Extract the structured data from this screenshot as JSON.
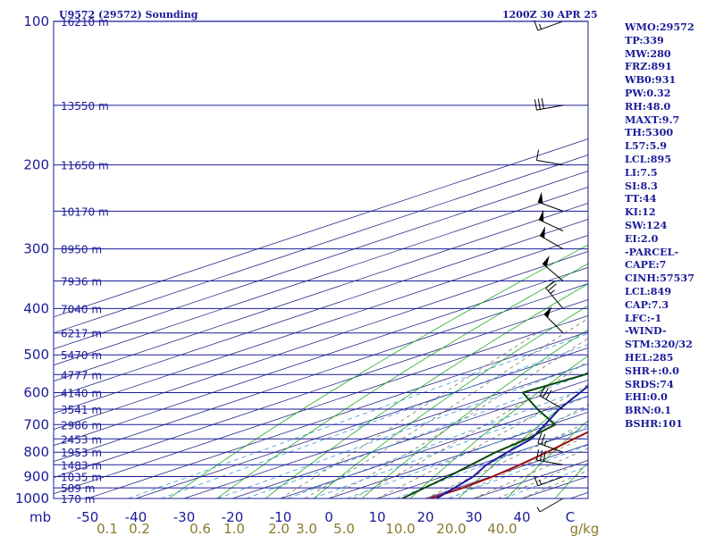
{
  "header": {
    "station": "U9572 (29572) Sounding",
    "time": "1200Z 30 APR 25"
  },
  "chart_data": {
    "type": "line",
    "title": "U9572 (29572) Sounding",
    "subtitle": "1200Z 30 APR 25",
    "xlabel": "",
    "ylabel": "mb",
    "ylim": [
      1000,
      100
    ],
    "xlim": [
      -50,
      50
    ],
    "pressure_ticks": [
      100,
      200,
      300,
      400,
      500,
      600,
      700,
      800,
      900,
      1000
    ],
    "pressure_tick_labels": [
      "100",
      "200",
      "300",
      "400",
      "500",
      "600",
      "700",
      "800",
      "900",
      "1000"
    ],
    "temperature_ticks": [
      -50,
      -40,
      -30,
      -20,
      -10,
      0,
      10,
      20,
      30,
      40,
      50
    ],
    "temperature_tick_labels": [
      "-50",
      "-40",
      "-30",
      "-20",
      "-10",
      "0",
      "10",
      "20",
      "30",
      "40",
      "C"
    ],
    "y_axis_unit": "mb",
    "height_levels": [
      {
        "p": 100,
        "label": "16210 m"
      },
      {
        "p": 150,
        "label": "13550 m"
      },
      {
        "p": 200,
        "label": "11650 m"
      },
      {
        "p": 250,
        "label": "10170 m"
      },
      {
        "p": 300,
        "label": "8950 m"
      },
      {
        "p": 350,
        "label": "7936 m"
      },
      {
        "p": 400,
        "label": "7040 m"
      },
      {
        "p": 450,
        "label": "6217 m"
      },
      {
        "p": 500,
        "label": "5470 m"
      },
      {
        "p": 550,
        "label": "4777 m"
      },
      {
        "p": 600,
        "label": "4140 m"
      },
      {
        "p": 650,
        "label": "3541 m"
      },
      {
        "p": 700,
        "label": "2986 m"
      },
      {
        "p": 750,
        "label": "2453 m"
      },
      {
        "p": 800,
        "label": "1953 m"
      },
      {
        "p": 850,
        "label": "1483 m"
      },
      {
        "p": 900,
        "label": "1035 m"
      },
      {
        "p": 950,
        "label": "589 m"
      },
      {
        "p": 1000,
        "label": "170 m"
      }
    ],
    "mixing_ratio_labels": [
      "0.1",
      "0.2",
      "0.6",
      "1.0",
      "2.0",
      "3.0",
      "5.0",
      "10.0",
      "20.0",
      "40.0"
    ],
    "mixing_ratio_unit": "g/kg",
    "series": [
      {
        "role": "temperature",
        "color": "#a01010",
        "points": [
          {
            "p": 100,
            "t": -61.3
          },
          {
            "p": 150,
            "t": -52.1
          },
          {
            "p": 200,
            "t": -37.2
          },
          {
            "p": 250,
            "t": -32.5
          },
          {
            "p": 300,
            "t": -32.3
          },
          {
            "p": 350,
            "t": -33.6
          },
          {
            "p": 400,
            "t": -23.2
          },
          {
            "p": 450,
            "t": -13.1
          },
          {
            "p": 500,
            "t": -7.7
          },
          {
            "p": 550,
            "t": -1.7
          },
          {
            "p": 600,
            "t": 4.2
          },
          {
            "p": 650,
            "t": 7.2
          },
          {
            "p": 700,
            "t": 10.9
          },
          {
            "p": 750,
            "t": 13.7
          },
          {
            "p": 800,
            "t": 16.4
          },
          {
            "p": 850,
            "t": 18.6
          },
          {
            "p": 900,
            "t": 20.3
          },
          {
            "p": 950,
            "t": 21.2
          },
          {
            "p": 1000,
            "t": 20.9
          }
        ]
      },
      {
        "role": "dewpoint",
        "color": "#0a4a0a",
        "points": [
          {
            "p": 100,
            "t": -102.6
          },
          {
            "p": 150,
            "t": -82.7
          },
          {
            "p": 200,
            "t": -70.4
          },
          {
            "p": 250,
            "t": -63.2
          },
          {
            "p": 300,
            "t": -58.1
          },
          {
            "p": 350,
            "t": -53.7
          },
          {
            "p": 400,
            "t": -44.9
          },
          {
            "p": 450,
            "t": -34.1
          },
          {
            "p": 500,
            "t": -28.6
          },
          {
            "p": 550,
            "t": -24.0
          },
          {
            "p": 600,
            "t": -25.7
          },
          {
            "p": 650,
            "t": -12.3
          },
          {
            "p": 700,
            "t": 0.9
          },
          {
            "p": 750,
            "t": 4.0
          },
          {
            "p": 800,
            "t": 5.8
          },
          {
            "p": 850,
            "t": 8.5
          },
          {
            "p": 900,
            "t": 11.1
          },
          {
            "p": 950,
            "t": 13.2
          },
          {
            "p": 1000,
            "t": 15.2
          }
        ]
      },
      {
        "role": "parcel",
        "color": "#1a1aa0",
        "points": [
          {
            "p": 130,
            "t": -106.6
          },
          {
            "p": 150,
            "t": -99.1
          },
          {
            "p": 200,
            "t": -83.3
          },
          {
            "p": 250,
            "t": -70.5
          },
          {
            "p": 300,
            "t": -60.1
          },
          {
            "p": 350,
            "t": -51.3
          },
          {
            "p": 400,
            "t": -42.8
          },
          {
            "p": 450,
            "t": -34.8
          },
          {
            "p": 500,
            "t": -27.5
          },
          {
            "p": 550,
            "t": -20.4
          },
          {
            "p": 600,
            "t": -13.8
          },
          {
            "p": 650,
            "t": -7.8
          },
          {
            "p": 700,
            "t": -1.2
          },
          {
            "p": 750,
            "t": 4.9
          },
          {
            "p": 800,
            "t": 8.2
          },
          {
            "p": 850,
            "t": 11.7
          },
          {
            "p": 900,
            "t": 16.3
          },
          {
            "p": 950,
            "t": 19.4
          },
          {
            "p": 1000,
            "t": 22.3
          }
        ]
      }
    ],
    "wind_barbs": [
      {
        "p": 100,
        "dir": 250,
        "kt": 15
      },
      {
        "p": 150,
        "dir": 260,
        "kt": 30
      },
      {
        "p": 200,
        "dir": 280,
        "kt": 10
      },
      {
        "p": 250,
        "dir": 290,
        "kt": 50
      },
      {
        "p": 275,
        "dir": 295,
        "kt": 50
      },
      {
        "p": 300,
        "dir": 300,
        "kt": 50
      },
      {
        "p": 350,
        "dir": 310,
        "kt": 50
      },
      {
        "p": 400,
        "dir": 320,
        "kt": 25
      },
      {
        "p": 450,
        "dir": 315,
        "kt": 50
      },
      {
        "p": 650,
        "dir": 300,
        "kt": 30
      },
      {
        "p": 800,
        "dir": 290,
        "kt": 25
      },
      {
        "p": 850,
        "dir": 280,
        "kt": 30
      },
      {
        "p": 900,
        "dir": 250,
        "kt": 15
      },
      {
        "p": 1000,
        "dir": 240,
        "kt": 5
      }
    ]
  },
  "indices_panel": [
    "WMO:29572",
    "TP:339",
    "MW:280",
    "FRZ:891",
    "WB0:931",
    "PW:0.32",
    "RH:48.0",
    "MAXT:9.7",
    "TH:5300",
    "L57:5.9",
    "LCL:895",
    "LI:7.5",
    "SI:8.3",
    "TT:44",
    "KI:12",
    "SW:124",
    "EI:2.0",
    "-PARCEL-",
    "CAPE:7",
    "CINH:57537",
    "LCL:849",
    "CAP:7.3",
    "LFC:-1",
    "-WIND-",
    "STM:320/32",
    "HEL:285",
    "SHR+:0.0",
    "SRDS:74",
    "EHI:0.0",
    "BRN:0.1",
    "BSHR:101"
  ],
  "colors": {
    "axis": "#1a1a99",
    "isobar": "#1a1a99",
    "isotherm": "#2a2a8a",
    "dry_adiabat": "#22aa22",
    "moist_adiabat": "#7a7a50",
    "mixing_ratio": "#3399dd"
  }
}
